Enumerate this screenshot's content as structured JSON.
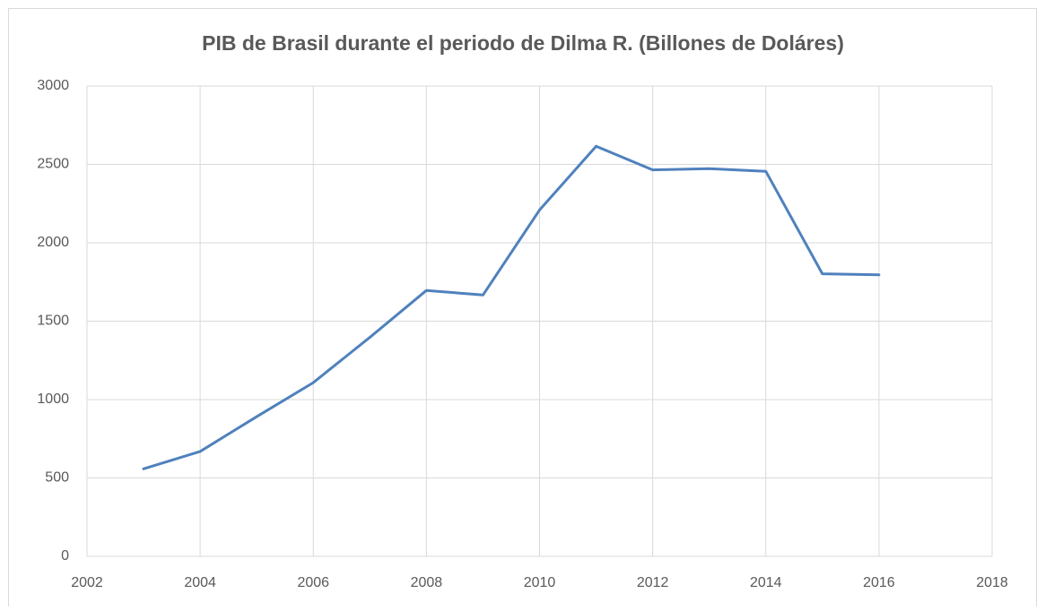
{
  "chart_data": {
    "type": "line",
    "title": "PIB de Brasil durante el periodo de Dilma R. (Billones de Doláres)",
    "x": [
      2003,
      2004,
      2005,
      2006,
      2007,
      2008,
      2009,
      2010,
      2011,
      2012,
      2013,
      2014,
      2015,
      2016
    ],
    "series": [
      {
        "name": "PIB",
        "color": "#4f81bd",
        "values": [
          558,
          669,
          891,
          1108,
          1397,
          1696,
          1667,
          2209,
          2616,
          2465,
          2473,
          2456,
          1802,
          1796
        ]
      }
    ],
    "xlim": [
      2002,
      2018
    ],
    "xticks": [
      2002,
      2004,
      2006,
      2008,
      2010,
      2012,
      2014,
      2016,
      2018
    ],
    "ylim": [
      0,
      3000
    ],
    "yticks": [
      0,
      500,
      1000,
      1500,
      2000,
      2500,
      3000
    ],
    "grid": true
  }
}
